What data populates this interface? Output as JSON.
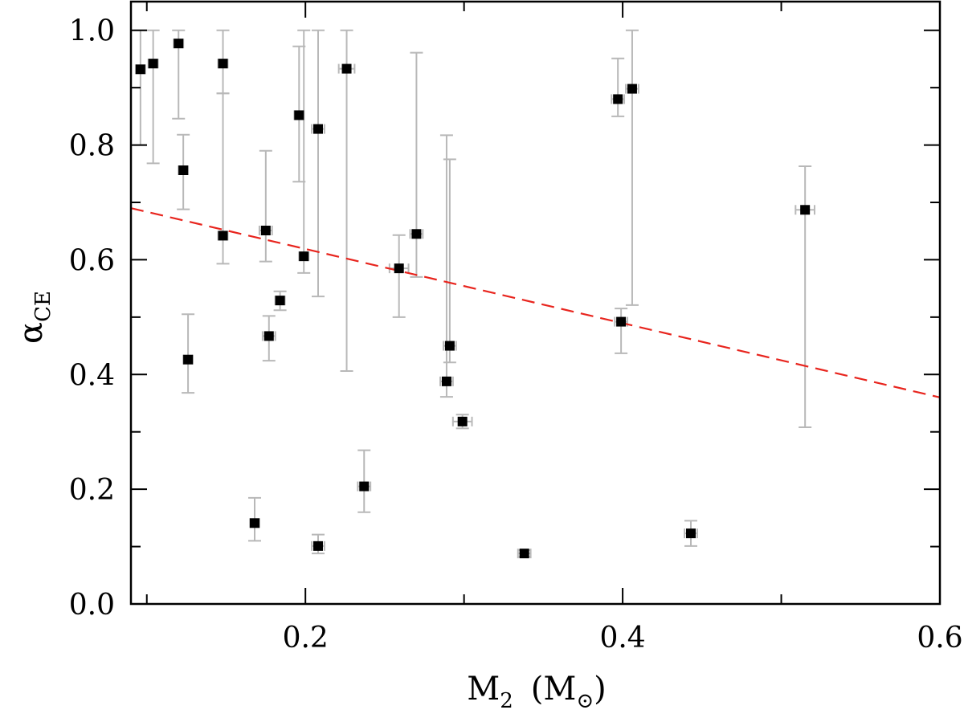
{
  "chart_data": {
    "type": "scatter",
    "title": "",
    "xlabel": {
      "main": "M",
      "sub": "2",
      "unit_open": "(M",
      "unit_sub": "⊙",
      "unit_close": ")"
    },
    "ylabel": {
      "main": "α",
      "sub": "CE"
    },
    "xlim": [
      0.09,
      0.6
    ],
    "ylim": [
      0.0,
      1.05
    ],
    "xticks": [
      {
        "value": 0.2,
        "label": "0.2"
      },
      {
        "value": 0.4,
        "label": "0.4"
      },
      {
        "value": 0.6,
        "label": "0.6"
      }
    ],
    "xminor": [
      0.1,
      0.3,
      0.5
    ],
    "yticks": [
      {
        "value": 0.0,
        "label": "0.0"
      },
      {
        "value": 0.2,
        "label": "0.2"
      },
      {
        "value": 0.4,
        "label": "0.4"
      },
      {
        "value": 0.6,
        "label": "0.6"
      },
      {
        "value": 0.8,
        "label": "0.8"
      },
      {
        "value": 1.0,
        "label": "1.0"
      }
    ],
    "yminor": [
      0.1,
      0.3,
      0.5,
      0.7,
      0.9
    ],
    "points": [
      {
        "x": 0.096,
        "y": 0.932,
        "ylo": 0.8,
        "yhi": 1.0,
        "xerr": 0.003
      },
      {
        "x": 0.104,
        "y": 0.942,
        "ylo": 0.768,
        "yhi": 1.0,
        "xerr": 0.003
      },
      {
        "x": 0.12,
        "y": 0.977,
        "ylo": 0.846,
        "yhi": 1.0,
        "xerr": 0.003
      },
      {
        "x": 0.123,
        "y": 0.756,
        "ylo": 0.688,
        "yhi": 0.818,
        "xerr": 0.003
      },
      {
        "x": 0.126,
        "y": 0.426,
        "ylo": 0.368,
        "yhi": 0.505,
        "xerr": 0.003
      },
      {
        "x": 0.148,
        "y": 0.942,
        "ylo": 0.89,
        "yhi": 1.0,
        "xerr": 0.003
      },
      {
        "x": 0.148,
        "y": 0.642,
        "ylo": 0.593,
        "yhi": 0.89,
        "xerr": 0.003
      },
      {
        "x": 0.168,
        "y": 0.141,
        "ylo": 0.11,
        "yhi": 0.185,
        "xerr": 0.003
      },
      {
        "x": 0.175,
        "y": 0.651,
        "ylo": 0.597,
        "yhi": 0.79,
        "xerr": 0.004
      },
      {
        "x": 0.177,
        "y": 0.467,
        "ylo": 0.424,
        "yhi": 0.502,
        "xerr": 0.004
      },
      {
        "x": 0.184,
        "y": 0.529,
        "ylo": 0.512,
        "yhi": 0.545,
        "xerr": 0.003
      },
      {
        "x": 0.196,
        "y": 0.852,
        "ylo": 0.736,
        "yhi": 0.972,
        "xerr": 0.003
      },
      {
        "x": 0.199,
        "y": 0.606,
        "ylo": 0.577,
        "yhi": 1.0,
        "xerr": 0.003
      },
      {
        "x": 0.208,
        "y": 0.828,
        "ylo": 0.536,
        "yhi": 1.0,
        "xerr": 0.004
      },
      {
        "x": 0.208,
        "y": 0.101,
        "ylo": 0.088,
        "yhi": 0.121,
        "xerr": 0.004
      },
      {
        "x": 0.226,
        "y": 0.933,
        "ylo": 0.406,
        "yhi": 1.0,
        "xerr": 0.005
      },
      {
        "x": 0.237,
        "y": 0.205,
        "ylo": 0.16,
        "yhi": 0.268,
        "xerr": 0.004
      },
      {
        "x": 0.259,
        "y": 0.585,
        "ylo": 0.5,
        "yhi": 0.643,
        "xerr": 0.006
      },
      {
        "x": 0.27,
        "y": 0.645,
        "ylo": 0.57,
        "yhi": 0.961,
        "xerr": 0.004
      },
      {
        "x": 0.289,
        "y": 0.388,
        "ylo": 0.361,
        "yhi": 0.817,
        "xerr": 0.004
      },
      {
        "x": 0.291,
        "y": 0.45,
        "ylo": 0.421,
        "yhi": 0.775,
        "xerr": 0.004
      },
      {
        "x": 0.299,
        "y": 0.318,
        "ylo": 0.306,
        "yhi": 0.33,
        "xerr": 0.006
      },
      {
        "x": 0.338,
        "y": 0.088,
        "ylo": 0.082,
        "yhi": 0.094,
        "xerr": 0.004
      },
      {
        "x": 0.397,
        "y": 0.88,
        "ylo": 0.85,
        "yhi": 0.951,
        "xerr": 0.004
      },
      {
        "x": 0.399,
        "y": 0.492,
        "ylo": 0.437,
        "yhi": 0.515,
        "xerr": 0.004
      },
      {
        "x": 0.406,
        "y": 0.898,
        "ylo": 0.521,
        "yhi": 1.0,
        "xerr": 0.004
      },
      {
        "x": 0.443,
        "y": 0.123,
        "ylo": 0.101,
        "yhi": 0.145,
        "xerr": 0.004
      },
      {
        "x": 0.515,
        "y": 0.687,
        "ylo": 0.308,
        "yhi": 0.763,
        "xerr": 0.006
      }
    ],
    "fit_line": {
      "x": [
        0.09,
        0.6
      ],
      "y": [
        0.69,
        0.36
      ],
      "color": "#e8251e",
      "style": "dashed"
    },
    "colors": {
      "marker": "#000000",
      "errorbar": "#b8b8b8",
      "axis": "#000000",
      "fit": "#e8251e"
    },
    "grid": false,
    "legend": "none"
  }
}
